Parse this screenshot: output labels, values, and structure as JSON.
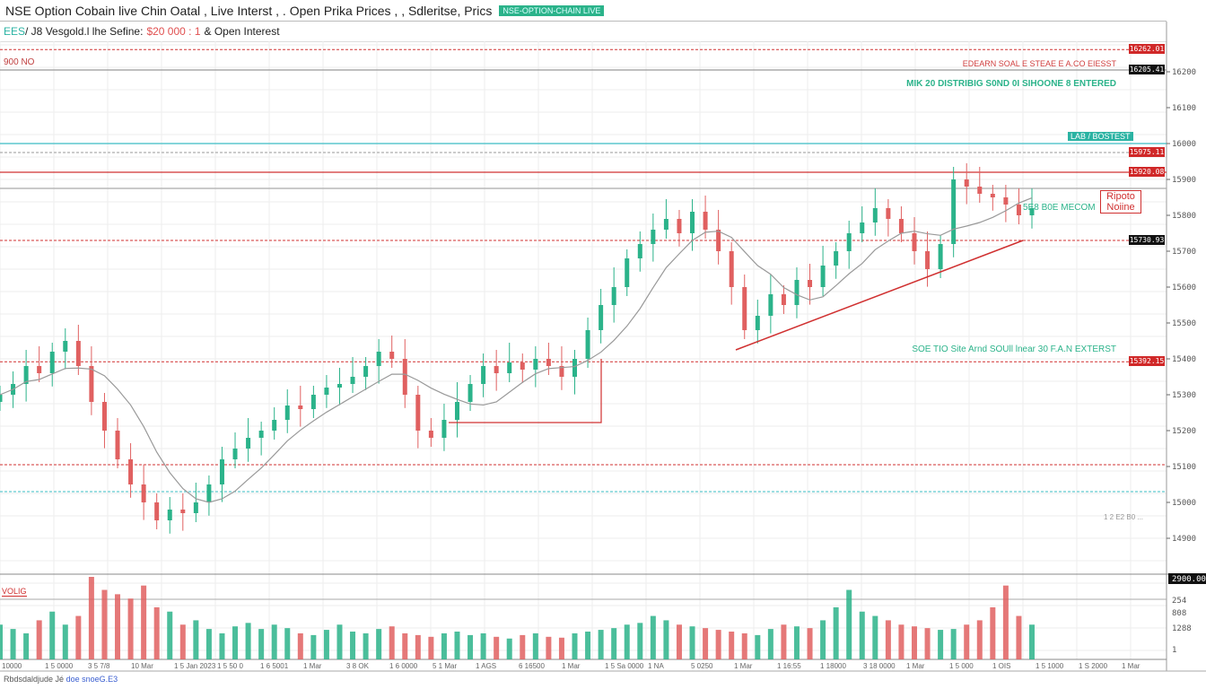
{
  "header": {
    "title": "NSE Option Cobain live Chin Oatal , Live Interst , . Open Prika Prices , , Sdleritse, Prics",
    "badge": "NSE-OPTION-CHAIN LIVE"
  },
  "subheader": {
    "symbol": "EES",
    "text": "/ J8 Vesgold.l lhe Sefine:",
    "value": "$20 000 : 1",
    "suffix": "& Open Interest"
  },
  "top_left_label": "900 NO",
  "annotations": {
    "red_top": "EDEARN SOAL E STEAE E A.CO EIESST",
    "green_top": "MIK 20 DISTRIBIG S0ND 0I SIHOONE 8 ENTERED",
    "mid_green": "5E8 B0E MECOM",
    "boxed_note": "Ripoto Noiine",
    "lower_green": "SOE TIO Site Arnd SOUll lnear 30 F.A.N EXTERST",
    "teal_tag": "LAB / BOSTEST",
    "volume_label": "VOLIG",
    "side_small": "1 2 E2 B0 ..."
  },
  "footer": {
    "text": "Rbdsdaldjude  Jé",
    "link": "doe snoeG.E3"
  },
  "colors": {
    "up": "#2bb38a",
    "down": "#e06060",
    "grid": "#eeeeee",
    "red_line": "#d03030",
    "teal_line": "#3bbcc4"
  },
  "chart_data": {
    "type": "candlestick",
    "title": "NSE Option Chain Live Data",
    "ylim": [
      14800,
      16300
    ],
    "y_ticks": [
      16200,
      16100,
      16000,
      15900,
      15800,
      15700,
      15600,
      15500,
      15400,
      15300,
      15200,
      15100,
      15000,
      14900
    ],
    "closes": [
      15300,
      15330,
      15380,
      15360,
      15420,
      15450,
      15380,
      15280,
      15200,
      15120,
      15050,
      15000,
      14950,
      14980,
      14970,
      15000,
      15050,
      15120,
      15150,
      15180,
      15200,
      15230,
      15270,
      15260,
      15300,
      15320,
      15330,
      15350,
      15380,
      15420,
      15400,
      15300,
      15200,
      15180,
      15230,
      15280,
      15330,
      15380,
      15360,
      15390,
      15370,
      15400,
      15380,
      15350,
      15400,
      15480,
      15550,
      15600,
      15680,
      15720,
      15760,
      15790,
      15750,
      15810,
      15760,
      15700,
      15600,
      15480,
      15520,
      15580,
      15550,
      15620,
      15600,
      15660,
      15700,
      15750,
      15780,
      15820,
      15790,
      15750,
      15700,
      15650,
      15720,
      15900,
      15880,
      15860,
      15850,
      15830,
      15800,
      15820
    ],
    "volumes": [
      40,
      35,
      30,
      45,
      55,
      40,
      50,
      95,
      80,
      75,
      70,
      85,
      60,
      55,
      40,
      45,
      35,
      30,
      38,
      42,
      35,
      40,
      36,
      30,
      28,
      34,
      40,
      32,
      30,
      35,
      38,
      30,
      28,
      26,
      30,
      32,
      28,
      30,
      26,
      24,
      28,
      30,
      26,
      25,
      30,
      32,
      34,
      36,
      40,
      42,
      50,
      45,
      40,
      38,
      36,
      34,
      32,
      30,
      28,
      35,
      40,
      38,
      36,
      45,
      60,
      80,
      55,
      50,
      45,
      40,
      38,
      36,
      34,
      35,
      40,
      45,
      60,
      85,
      50,
      40
    ],
    "levels": [
      {
        "price": 16262,
        "label": "16262.01",
        "color": "#d03030",
        "style": "dashed",
        "tag": "red"
      },
      {
        "price": 16205,
        "label": "16205.41",
        "color": "#999999",
        "style": "solid",
        "tag": "black"
      },
      {
        "price": 16000,
        "label": "16000.00",
        "color": "#3bbcc4",
        "style": "solid",
        "tag": "none"
      },
      {
        "price": 15975,
        "label": "15975.11",
        "color": "#999999",
        "style": "dashed",
        "tag": "red"
      },
      {
        "price": 15920,
        "label": "15920.08",
        "color": "#d03030",
        "style": "solid",
        "tag": "red"
      },
      {
        "price": 15875,
        "label": "15875.00",
        "color": "#aaaaaa",
        "style": "solid",
        "tag": "none"
      },
      {
        "price": 15730,
        "label": "15730.93",
        "color": "#d03030",
        "style": "dashed",
        "tag": "black"
      },
      {
        "price": 15392,
        "label": "15392.15",
        "color": "#d03030",
        "style": "dashed",
        "tag": "red"
      },
      {
        "price": 15105,
        "label": "15105.00",
        "color": "#d03030",
        "style": "dashed",
        "tag": "none"
      },
      {
        "price": 15030,
        "label": "15030.15",
        "color": "#3bbcc4",
        "style": "dashed",
        "tag": "none"
      }
    ],
    "volume_axis": [
      "2900.00",
      "254",
      "808",
      "1288",
      "1"
    ],
    "x_labels": [
      "10000",
      "1 5 0000",
      "3 5 7/8",
      "10 Mar",
      "1 5 Jan 2023",
      "1 5 50 0",
      "1 6 5001",
      "1 Mar",
      "3 8 OK",
      "1 6 0000",
      "5 1 Mar",
      "1 AGS",
      "6 16500",
      "1 Mar",
      "1 5 Sa 0000",
      "1 NA",
      "5 0250",
      "1 Mar",
      "1 16:55",
      "1 18000",
      "3 18 0000",
      "1 Mar",
      "1 5 000",
      "1 OIS",
      "1 5 1000",
      "1 S 2000",
      "1 Mar"
    ]
  }
}
